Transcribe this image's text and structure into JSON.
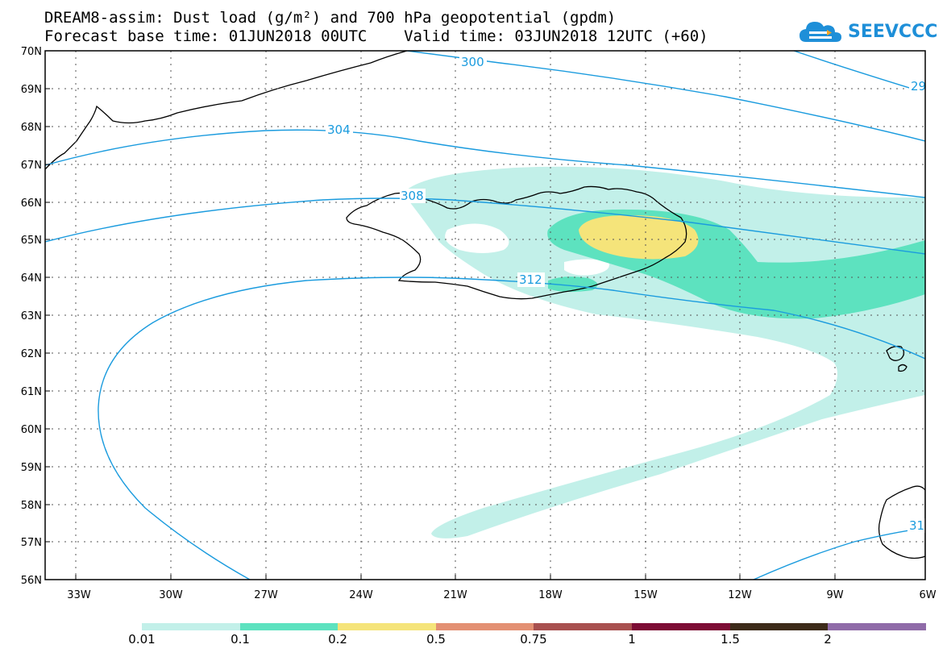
{
  "header": {
    "line1": "DREAM8-assim: Dust load (g/m²) and 700 hPa geopotential (gpdm)",
    "line2": "Forecast base time: 01JUN2018 00UTC    Valid time: 03JUN2018 12UTC (+60)"
  },
  "logo": {
    "text": "SEEVCCC",
    "icon": "cloud-icon",
    "color": "#1e8fd8"
  },
  "map": {
    "region": "North Atlantic / Iceland",
    "lon_range": [
      -34.5,
      -6
    ],
    "lat_range": [
      56,
      70
    ],
    "lat_labels": [
      "70N",
      "69N",
      "68N",
      "67N",
      "66N",
      "65N",
      "64N",
      "63N",
      "62N",
      "61N",
      "60N",
      "59N",
      "58N",
      "57N",
      "56N"
    ],
    "lon_labels": [
      "33W",
      "30W",
      "27W",
      "24W",
      "21W",
      "18W",
      "15W",
      "12W",
      "9W",
      "6W"
    ],
    "gridlines": "dotted",
    "contour_labels": [
      "300",
      "304",
      "308",
      "312",
      "29",
      "31"
    ],
    "contour_color": "#1a9bde"
  },
  "colorbar": {
    "colors": [
      "#c2f0e9",
      "#5de2bf",
      "#f5e47a",
      "#e39073",
      "#a8504f",
      "#7d0d35",
      "#3d2b1a",
      "#8f6ba8"
    ],
    "labels": [
      "0.01",
      "0.1",
      "0.2",
      "0.5",
      "0.75",
      "1",
      "1.5",
      "2"
    ]
  }
}
